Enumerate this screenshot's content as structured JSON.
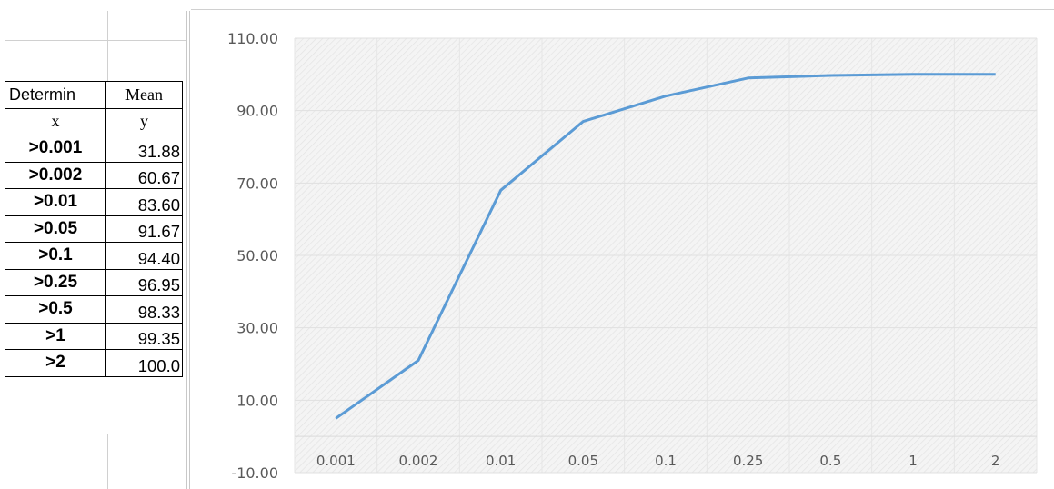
{
  "table": {
    "header_row1": [
      "Determin",
      "Mean"
    ],
    "header_row2": [
      "x",
      "y"
    ],
    "rows": [
      {
        "x": ">0.001",
        "y": "31.88"
      },
      {
        "x": ">0.002",
        "y": "60.67"
      },
      {
        "x": ">0.01",
        "y": "83.60"
      },
      {
        "x": ">0.05",
        "y": "91.67"
      },
      {
        "x": ">0.1",
        "y": "94.40"
      },
      {
        "x": ">0.25",
        "y": "96.95"
      },
      {
        "x": ">0.5",
        "y": "98.33"
      },
      {
        "x": ">1",
        "y": "99.35"
      },
      {
        "x": ">2",
        "y": "100.0"
      }
    ]
  },
  "chart_data": {
    "type": "line",
    "categories": [
      "0.001",
      "0.002",
      "0.01",
      "0.05",
      "0.1",
      "0.25",
      "0.5",
      "1",
      "2"
    ],
    "series": [
      {
        "values": [
          5,
          21,
          68,
          87,
          94,
          99,
          99.7,
          100,
          100
        ]
      }
    ],
    "ylim": [
      -10,
      110
    ],
    "yticks": [
      "-10.00",
      "10.00",
      "30.00",
      "50.00",
      "70.00",
      "90.00",
      "110.00"
    ],
    "grid": true,
    "legend": "none",
    "colors": {
      "line": "#5b9bd5",
      "plot_bg": "#f2f2f2",
      "axis_text": "#595959"
    }
  }
}
